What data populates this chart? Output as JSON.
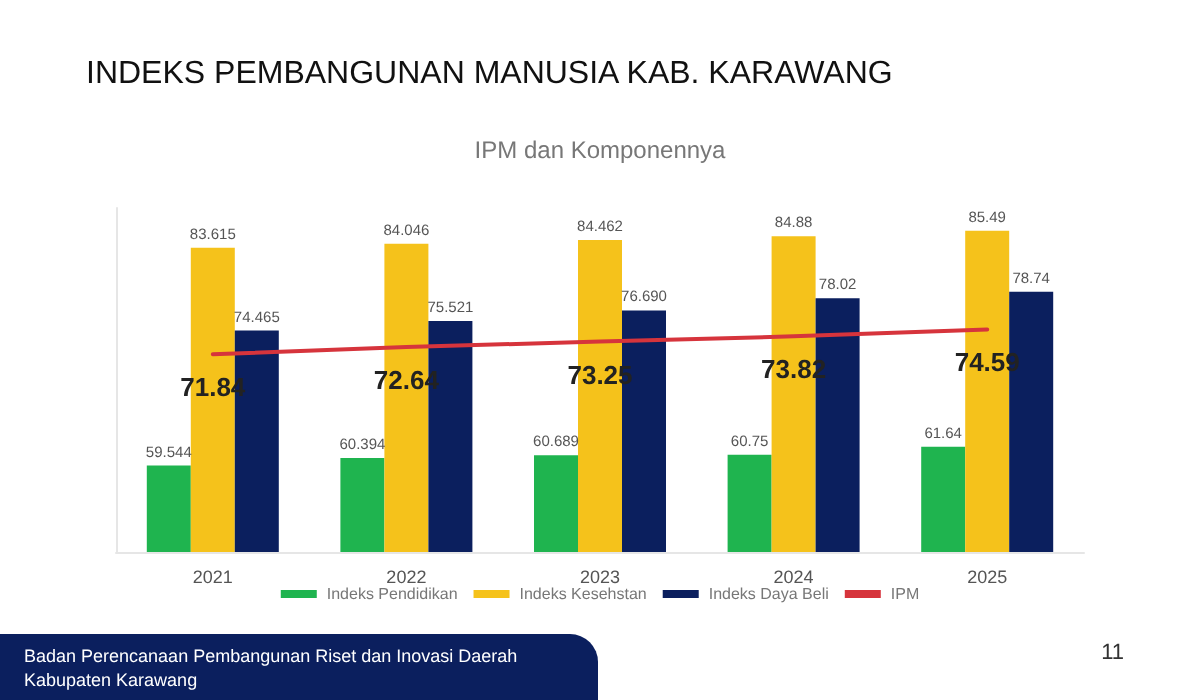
{
  "chart_data": {
    "type": "bar",
    "title": "INDEKS PEMBANGUNAN MANUSIA KAB. KARAWANG",
    "subtitle": "IPM dan Komponennya",
    "categories": [
      "2021",
      "2022",
      "2023",
      "2024",
      "2025"
    ],
    "series": [
      {
        "name": "Indeks Pendidikan",
        "color": "#1fb44f",
        "values": [
          59.544,
          60.394,
          60.689,
          60.75,
          61.64
        ],
        "value_labels": [
          "59.544",
          "60.394",
          "60.689",
          "60.75",
          "61.64"
        ]
      },
      {
        "name": "Indeks Kesehstan",
        "color": "#f5c21b",
        "values": [
          83.615,
          84.046,
          84.462,
          84.88,
          85.49
        ],
        "value_labels": [
          "83.615",
          "84.046",
          "84.462",
          "84.88",
          "85.49"
        ]
      },
      {
        "name": "Indeks Daya Beli",
        "color": "#0b1f5e",
        "values": [
          74.465,
          75.521,
          76.69,
          78.02,
          78.74
        ],
        "value_labels": [
          "74.465",
          "75.521",
          "76.690",
          "78.02",
          "78.74"
        ]
      },
      {
        "name": "IPM",
        "type": "line",
        "color": "#d6343c",
        "values": [
          71.84,
          72.64,
          73.25,
          73.82,
          74.59
        ],
        "value_labels": [
          "71.84",
          "72.64",
          "73.25",
          "73.82",
          "74.59"
        ]
      }
    ],
    "ylim": [
      50,
      88
    ],
    "tick_labels": "x",
    "legend": "bottom",
    "marker": "none",
    "line_style": "solid",
    "annotations": [
      "Badan Perencanaan Pembangunan Riset dan Inovasi Daerah\nKabupaten Karawang",
      "11"
    ]
  }
}
